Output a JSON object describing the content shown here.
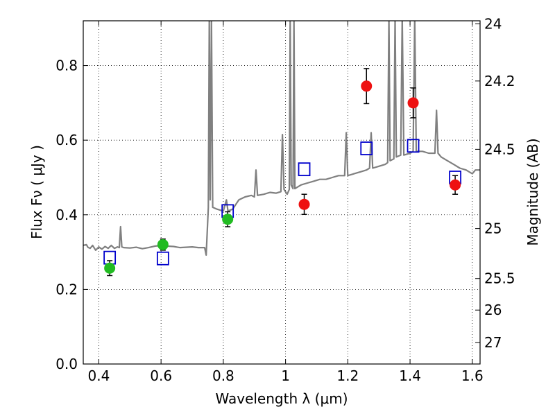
{
  "chart_data": {
    "type": "scatter",
    "title": "",
    "xlabel": "Wavelength  λ (μm)",
    "ylabel": "Flux  Fν  ( μJy )",
    "y2label": "Magnitude (AB)",
    "xlim": [
      0.35,
      1.625
    ],
    "ylim": [
      0.0,
      0.92
    ],
    "grid": true,
    "x_ticks": [
      0.4,
      0.6,
      0.8,
      1.0,
      1.2,
      1.4,
      1.6
    ],
    "x_tick_labels": [
      "0.4",
      "0.6",
      "0.8",
      "1",
      "1.2",
      "1.4",
      "1.6"
    ],
    "y_ticks": [
      0.0,
      0.2,
      0.4,
      0.6,
      0.8
    ],
    "y_tick_labels": [
      "0.0",
      "0.2",
      "0.4",
      "0.6",
      "0.8"
    ],
    "mag_ticks": [
      24,
      24.2,
      24.5,
      25,
      25.5,
      26,
      27
    ],
    "mag_tick_labels": [
      "24",
      "24.2",
      "24.5",
      "25",
      "25.5",
      "26",
      "27"
    ],
    "colors": {
      "model": "#808080",
      "green": "#22bb22",
      "red": "#ee1111",
      "square": "#0000cc",
      "error": "#000000"
    },
    "series": [
      {
        "kind": "model-spectrum",
        "points": [
          [
            0.35,
            0.318
          ],
          [
            0.36,
            0.32
          ],
          [
            0.365,
            0.313
          ],
          [
            0.372,
            0.31
          ],
          [
            0.38,
            0.318
          ],
          [
            0.39,
            0.305
          ],
          [
            0.4,
            0.314
          ],
          [
            0.41,
            0.308
          ],
          [
            0.42,
            0.315
          ],
          [
            0.43,
            0.31
          ],
          [
            0.44,
            0.318
          ],
          [
            0.45,
            0.31
          ],
          [
            0.46,
            0.314
          ],
          [
            0.466,
            0.312
          ],
          [
            0.47,
            0.368
          ],
          [
            0.474,
            0.314
          ],
          [
            0.48,
            0.312
          ],
          [
            0.5,
            0.311
          ],
          [
            0.52,
            0.313
          ],
          [
            0.54,
            0.309
          ],
          [
            0.56,
            0.312
          ],
          [
            0.58,
            0.316
          ],
          [
            0.6,
            0.318
          ],
          [
            0.62,
            0.316
          ],
          [
            0.64,
            0.315
          ],
          [
            0.66,
            0.312
          ],
          [
            0.68,
            0.313
          ],
          [
            0.7,
            0.314
          ],
          [
            0.72,
            0.312
          ],
          [
            0.74,
            0.312
          ],
          [
            0.745,
            0.292
          ],
          [
            0.752,
            0.42
          ],
          [
            0.755,
            0.93
          ],
          [
            0.758,
            0.44
          ],
          [
            0.762,
            0.93
          ],
          [
            0.766,
            0.42
          ],
          [
            0.78,
            0.415
          ],
          [
            0.8,
            0.41
          ],
          [
            0.81,
            0.44
          ],
          [
            0.815,
            0.41
          ],
          [
            0.83,
            0.415
          ],
          [
            0.85,
            0.44
          ],
          [
            0.87,
            0.448
          ],
          [
            0.89,
            0.452
          ],
          [
            0.9,
            0.448
          ],
          [
            0.905,
            0.52
          ],
          [
            0.91,
            0.452
          ],
          [
            0.93,
            0.455
          ],
          [
            0.95,
            0.46
          ],
          [
            0.97,
            0.458
          ],
          [
            0.985,
            0.462
          ],
          [
            0.99,
            0.615
          ],
          [
            0.995,
            0.468
          ],
          [
            1.005,
            0.455
          ],
          [
            1.012,
            0.468
          ],
          [
            1.015,
            0.93
          ],
          [
            1.018,
            0.48
          ],
          [
            1.024,
            0.47
          ],
          [
            1.027,
            0.93
          ],
          [
            1.03,
            0.47
          ],
          [
            1.05,
            0.48
          ],
          [
            1.07,
            0.485
          ],
          [
            1.09,
            0.49
          ],
          [
            1.11,
            0.495
          ],
          [
            1.13,
            0.495
          ],
          [
            1.15,
            0.5
          ],
          [
            1.17,
            0.505
          ],
          [
            1.19,
            0.505
          ],
          [
            1.195,
            0.62
          ],
          [
            1.2,
            0.505
          ],
          [
            1.22,
            0.51
          ],
          [
            1.24,
            0.515
          ],
          [
            1.26,
            0.52
          ],
          [
            1.27,
            0.525
          ],
          [
            1.275,
            0.62
          ],
          [
            1.28,
            0.525
          ],
          [
            1.3,
            0.53
          ],
          [
            1.32,
            0.535
          ],
          [
            1.328,
            0.54
          ],
          [
            1.332,
            0.93
          ],
          [
            1.336,
            0.545
          ],
          [
            1.348,
            0.55
          ],
          [
            1.352,
            0.93
          ],
          [
            1.356,
            0.555
          ],
          [
            1.37,
            0.56
          ],
          [
            1.375,
            0.93
          ],
          [
            1.38,
            0.56
          ],
          [
            1.4,
            0.565
          ],
          [
            1.41,
            0.57
          ],
          [
            1.415,
            0.93
          ],
          [
            1.42,
            0.57
          ],
          [
            1.44,
            0.57
          ],
          [
            1.46,
            0.565
          ],
          [
            1.48,
            0.565
          ],
          [
            1.485,
            0.68
          ],
          [
            1.49,
            0.565
          ],
          [
            1.5,
            0.555
          ],
          [
            1.52,
            0.545
          ],
          [
            1.54,
            0.535
          ],
          [
            1.56,
            0.525
          ],
          [
            1.58,
            0.52
          ],
          [
            1.6,
            0.51
          ],
          [
            1.61,
            0.52
          ],
          [
            1.625,
            0.52
          ]
        ]
      },
      {
        "kind": "observed-green",
        "points": [
          {
            "x": 0.435,
            "y": 0.257,
            "err": 0.02
          },
          {
            "x": 0.606,
            "y": 0.32,
            "err": 0.015
          },
          {
            "x": 0.814,
            "y": 0.388,
            "err": 0.02
          }
        ]
      },
      {
        "kind": "observed-red",
        "points": [
          {
            "x": 1.06,
            "y": 0.428,
            "err": 0.027
          },
          {
            "x": 1.26,
            "y": 0.745,
            "err": 0.047
          },
          {
            "x": 1.41,
            "y": 0.7,
            "err": 0.04
          },
          {
            "x": 1.545,
            "y": 0.48,
            "err": 0.025
          }
        ]
      },
      {
        "kind": "model-photometry",
        "points": [
          {
            "x": 0.435,
            "y": 0.285
          },
          {
            "x": 0.606,
            "y": 0.283
          },
          {
            "x": 0.814,
            "y": 0.41
          },
          {
            "x": 1.06,
            "y": 0.522
          },
          {
            "x": 1.26,
            "y": 0.578
          },
          {
            "x": 1.41,
            "y": 0.585
          },
          {
            "x": 1.545,
            "y": 0.5
          }
        ]
      }
    ]
  }
}
